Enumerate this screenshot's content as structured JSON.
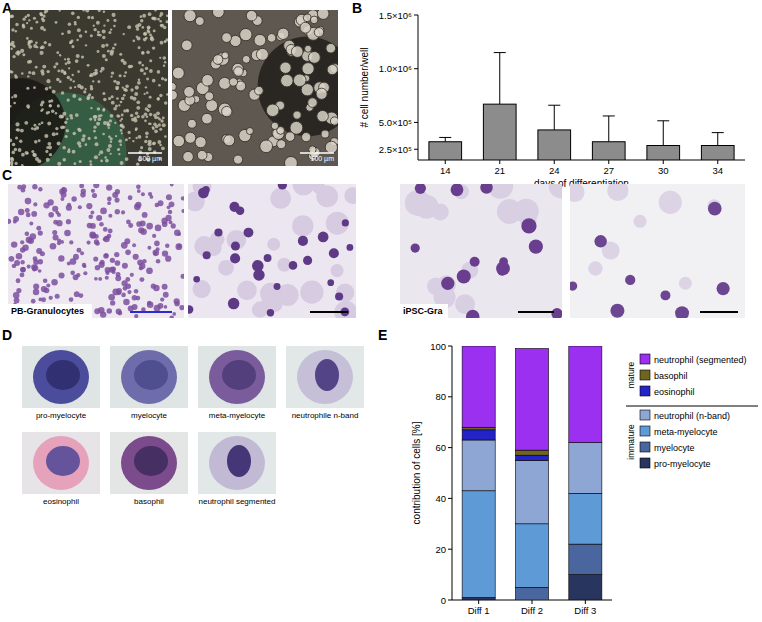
{
  "panels": {
    "A": {
      "label": "A",
      "scale_bars": [
        "500 µm",
        "100 µm"
      ]
    },
    "C": {
      "label": "C",
      "captions": [
        "PB-Granulocytes",
        "iPSC-Gra"
      ]
    },
    "D": {
      "label": "D",
      "cells": [
        "pro-myelocyte",
        "myelocyte",
        "meta-myelocyte",
        "neutrophile n-band",
        "eosinophil",
        "basophil",
        "neutrophil segmented"
      ]
    }
  },
  "chart_data": [
    {
      "type": "bar",
      "panel_label": "B",
      "xlabel": "days of differentiation",
      "ylabel": "# cell number/well",
      "categories": [
        "14",
        "21",
        "24",
        "27",
        "30",
        "34"
      ],
      "values": [
        320000,
        670000,
        430000,
        320000,
        285000,
        285000
      ],
      "errors": [
        40000,
        480000,
        230000,
        240000,
        230000,
        120000
      ],
      "color": "#8c8c8c",
      "ylim": [
        150000,
        1500000
      ],
      "yticks": [
        {
          "value": 250000,
          "label": "2.5×10⁵"
        },
        {
          "value": 500000,
          "label": "5.0×10⁵"
        },
        {
          "value": 1000000,
          "label": "1.0×10⁶"
        },
        {
          "value": 1500000,
          "label": "1.5×10⁶"
        }
      ]
    },
    {
      "type": "bar",
      "panel_label": "E",
      "stacked": true,
      "legend": "right",
      "ylabel": "contribution of cells [%]",
      "categories": [
        "Diff 1",
        "Diff 2",
        "Diff 3"
      ],
      "series": [
        {
          "name": "pro-myelocyte",
          "color": "#27355f",
          "values": [
            1,
            0,
            10
          ]
        },
        {
          "name": "myelocyte",
          "color": "#4a669f",
          "values": [
            0,
            5,
            12
          ]
        },
        {
          "name": "meta-myelocyte",
          "color": "#5e9bd6",
          "values": [
            42,
            25,
            20
          ]
        },
        {
          "name": "neutrophil (n-band)",
          "color": "#8ea6d4",
          "values": [
            20,
            25,
            20
          ]
        },
        {
          "name": "eosinophil",
          "color": "#2323c8",
          "values": [
            4,
            2,
            0
          ]
        },
        {
          "name": "basophil",
          "color": "#6f6520",
          "values": [
            1,
            2,
            0
          ]
        },
        {
          "name": "neutrophil (segmented)",
          "color": "#9b30f0",
          "values": [
            32,
            40,
            38
          ]
        }
      ],
      "annotations": [
        "mature",
        "immature"
      ],
      "ylim": [
        0,
        100
      ],
      "yticks": [
        0,
        20,
        40,
        60,
        80,
        100
      ]
    }
  ]
}
